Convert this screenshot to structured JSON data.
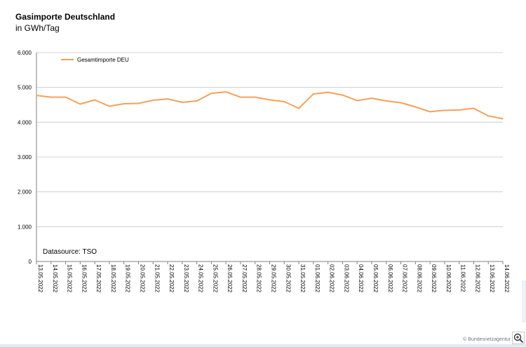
{
  "chart_data": {
    "type": "line",
    "title": "Gasimporte Deutschland",
    "subtitle": "in GWh/Tag",
    "ylim": [
      0,
      6000
    ],
    "yticks": [
      "0",
      "1.000",
      "2.000",
      "3.000",
      "4.000",
      "5.000",
      "6.000"
    ],
    "grid": "horizontal",
    "legend": "top-left",
    "source": "Datasource: TSO",
    "x": [
      "13.05.2022",
      "14.05.2022",
      "15.05.2022",
      "16.05.2022",
      "17.05.2022",
      "18.05.2022",
      "19.05.2022",
      "20.05.2022",
      "21.05.2022",
      "22.05.2022",
      "23.05.2022",
      "24.05.2022",
      "25.05.2022",
      "26.05.2022",
      "27.05.2022",
      "28.05.2022",
      "29.05.2022",
      "30.05.2022",
      "31.05.2022",
      "01.06.2022",
      "02.06.2022",
      "03.06.2022",
      "04.06.2022",
      "05.06.2022",
      "06.06.2022",
      "07.06.2022",
      "08.06.2022",
      "09.06.2022",
      "10.06.2022",
      "11.06.2022",
      "12.06.2022",
      "13.06.2022",
      "14.06.2022"
    ],
    "series": [
      {
        "name": "Gesamtimporte DEU",
        "color": "#f5a05a",
        "values": [
          4770,
          4720,
          4720,
          4520,
          4640,
          4460,
          4530,
          4540,
          4630,
          4670,
          4570,
          4610,
          4830,
          4870,
          4720,
          4720,
          4640,
          4590,
          4400,
          4810,
          4860,
          4780,
          4620,
          4690,
          4610,
          4560,
          4440,
          4300,
          4340,
          4350,
          4400,
          4180,
          4100
        ]
      }
    ]
  },
  "copyright": "© Bundesnetzagentur",
  "icons": {
    "zoom": "zoom-in-icon"
  }
}
